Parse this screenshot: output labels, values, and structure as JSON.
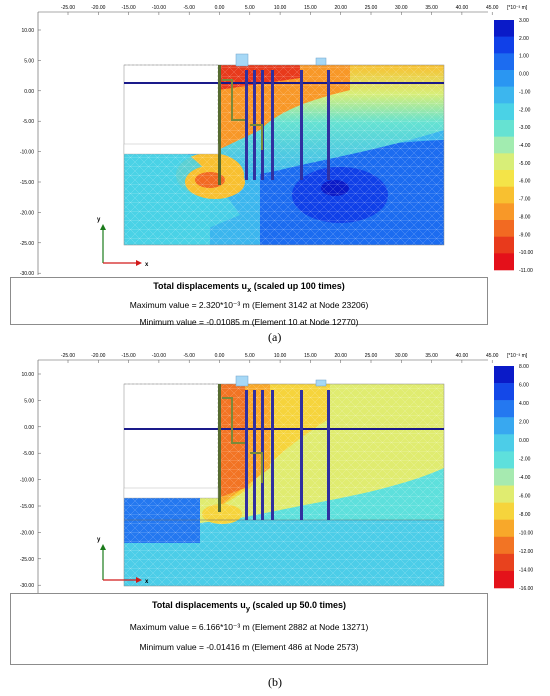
{
  "panels": [
    {
      "id": "a",
      "label": "(a)",
      "title": "Total displacements u",
      "subscript": "x",
      "title_suffix": " (scaled up 100 times)",
      "max_line": "Maximum value = 2.320*10⁻³ m (Element 3142 at Node 23206)",
      "min_line": "Minimum value = -0.01085 m (Element 10 at Node 12770)",
      "unit": "[*10⁻³ m]",
      "colorbar": [
        "3.00",
        "2.00",
        "1.00",
        "0.00",
        "-1.00",
        "-2.00",
        "-3.00",
        "-4.00",
        "-5.00",
        "-6.00",
        "-7.00",
        "-8.00",
        "-9.00",
        "-10.00",
        "-11.00"
      ],
      "colors": [
        "#0a1ac8",
        "#1040e8",
        "#1c6cf0",
        "#2a96f2",
        "#3cb6ee",
        "#4ad2e6",
        "#66e2d2",
        "#a2ecb0",
        "#d8ee78",
        "#f4e448",
        "#f8c030",
        "#f89828",
        "#f26a22",
        "#e83a1c",
        "#e4101a"
      ]
    },
    {
      "id": "b",
      "label": "(b)",
      "title": "Total displacements u",
      "subscript": "y",
      "title_suffix": " (scaled up 50.0 times)",
      "max_line": "Maximum value = 6.166*10⁻³ m (Element 2882 at Node 13271)",
      "min_line": "Minimum value = -0.01416 m (Element 486 at Node 2573)",
      "unit": "[*10⁻³ m]",
      "colorbar": [
        "8.00",
        "6.00",
        "4.00",
        "2.00",
        "0.00",
        "-2.00",
        "-4.00",
        "-6.00",
        "-8.00",
        "-10.00",
        "-12.00",
        "-14.00",
        "-16.00"
      ],
      "colors": [
        "#0a1ac8",
        "#1448e8",
        "#2478f0",
        "#38a8f0",
        "#4ccde8",
        "#5ee0dc",
        "#a6eab0",
        "#e0ec70",
        "#f6d43c",
        "#f8a82a",
        "#f27424",
        "#e8421e",
        "#e4121a"
      ]
    }
  ],
  "x_ticks": [
    "-25.00",
    "-20.00",
    "-15.00",
    "-10.00",
    "-5.00",
    "0.00",
    "5.00",
    "10.00",
    "15.00",
    "20.00",
    "25.00",
    "30.00",
    "35.00",
    "40.00",
    "45.00"
  ],
  "y_ticks": [
    "10.00",
    "5.00",
    "0.00",
    "-5.00",
    "-10.00",
    "-15.00",
    "-20.00",
    "-25.00",
    "-30.00"
  ],
  "axis_x": "x",
  "axis_y": "y"
}
